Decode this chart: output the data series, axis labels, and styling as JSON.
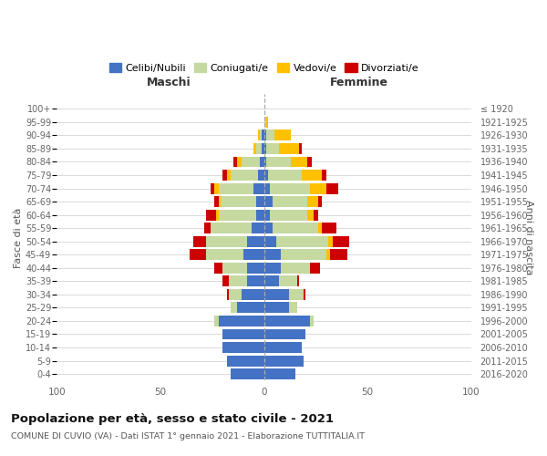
{
  "age_groups": [
    "0-4",
    "5-9",
    "10-14",
    "15-19",
    "20-24",
    "25-29",
    "30-34",
    "35-39",
    "40-44",
    "45-49",
    "50-54",
    "55-59",
    "60-64",
    "65-69",
    "70-74",
    "75-79",
    "80-84",
    "85-89",
    "90-94",
    "95-99",
    "100+"
  ],
  "birth_years": [
    "2016-2020",
    "2011-2015",
    "2006-2010",
    "2001-2005",
    "1996-2000",
    "1991-1995",
    "1986-1990",
    "1981-1985",
    "1976-1980",
    "1971-1975",
    "1966-1970",
    "1961-1965",
    "1956-1960",
    "1951-1955",
    "1946-1950",
    "1941-1945",
    "1936-1940",
    "1931-1935",
    "1926-1930",
    "1921-1925",
    "≤ 1920"
  ],
  "colors": {
    "celibe": "#4472c4",
    "coniugato": "#c5d9a0",
    "vedovo": "#ffc000",
    "divorziato": "#cc0000"
  },
  "maschi": {
    "celibe": [
      16,
      18,
      20,
      20,
      22,
      13,
      11,
      8,
      8,
      10,
      8,
      6,
      4,
      4,
      5,
      3,
      2,
      1,
      1,
      0,
      0
    ],
    "coniugato": [
      0,
      0,
      0,
      0,
      2,
      3,
      6,
      9,
      12,
      18,
      20,
      20,
      18,
      17,
      17,
      13,
      9,
      3,
      1,
      0,
      0
    ],
    "vedovo": [
      0,
      0,
      0,
      0,
      0,
      0,
      0,
      0,
      0,
      0,
      0,
      0,
      1,
      1,
      2,
      2,
      2,
      1,
      1,
      0,
      0
    ],
    "divorziato": [
      0,
      0,
      0,
      0,
      0,
      0,
      1,
      3,
      4,
      8,
      6,
      3,
      5,
      2,
      2,
      2,
      2,
      0,
      0,
      0,
      0
    ]
  },
  "femmine": {
    "nubile": [
      15,
      19,
      18,
      20,
      22,
      12,
      12,
      7,
      8,
      8,
      6,
      4,
      3,
      4,
      3,
      2,
      1,
      1,
      1,
      0,
      0
    ],
    "coniugata": [
      0,
      0,
      0,
      0,
      2,
      4,
      7,
      9,
      14,
      22,
      25,
      22,
      18,
      17,
      19,
      16,
      12,
      6,
      4,
      1,
      0
    ],
    "vedova": [
      0,
      0,
      0,
      0,
      0,
      0,
      0,
      0,
      0,
      2,
      2,
      2,
      3,
      5,
      8,
      10,
      8,
      10,
      8,
      1,
      0
    ],
    "divorziata": [
      0,
      0,
      0,
      0,
      0,
      0,
      1,
      1,
      5,
      8,
      8,
      7,
      2,
      2,
      6,
      2,
      2,
      1,
      0,
      0,
      0
    ]
  },
  "title": "Popolazione per età, sesso e stato civile - 2021",
  "subtitle": "COMUNE DI CUVIO (VA) - Dati ISTAT 1° gennaio 2021 - Elaborazione TUTTITALIA.IT",
  "xlabel_left": "Maschi",
  "xlabel_right": "Femmine",
  "ylabel_left": "Fasce di età",
  "ylabel_right": "Anni di nascita",
  "legend_labels": [
    "Celibi/Nubili",
    "Coniugati/e",
    "Vedovi/e",
    "Divorziati/e"
  ],
  "xlim": 100,
  "background_color": "#ffffff",
  "grid_color": "#cccccc"
}
